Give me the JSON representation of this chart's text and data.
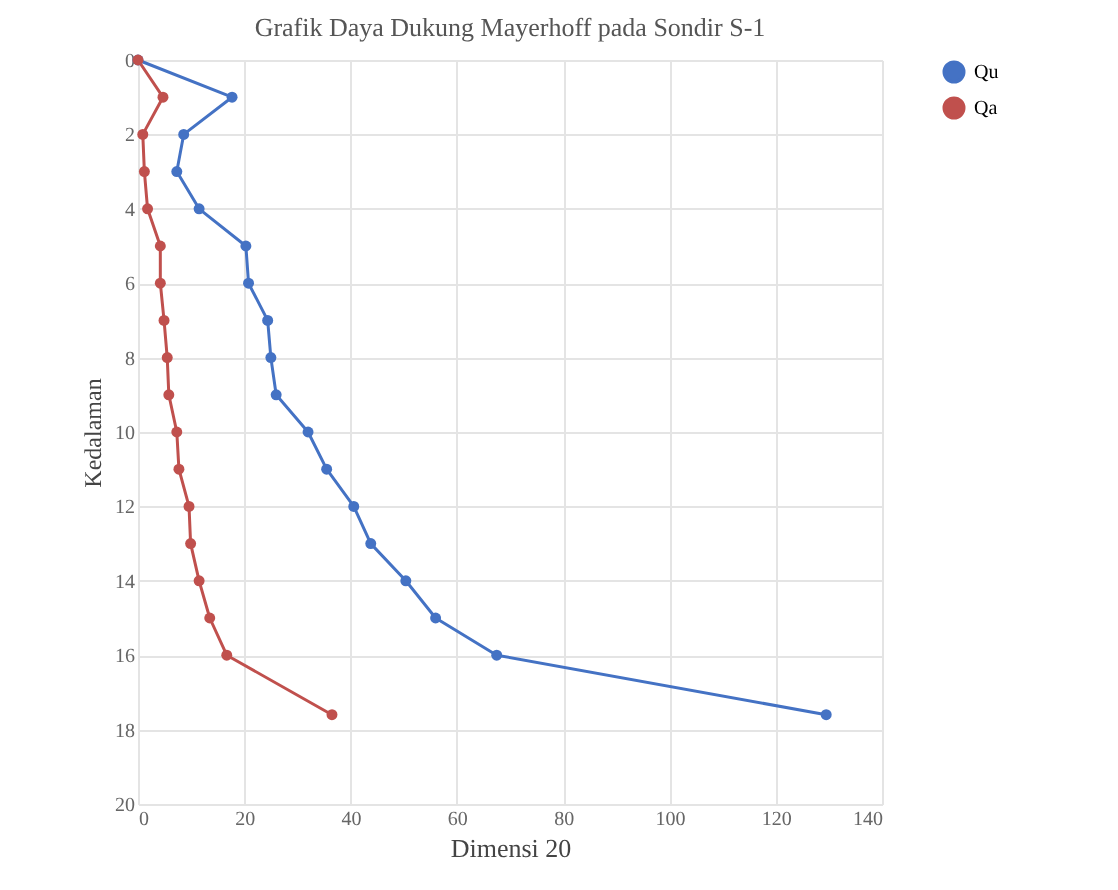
{
  "chart_data": {
    "type": "line",
    "orientation": "horizontal",
    "title": "Grafik Daya Dukung Mayerhoff pada Sondir S-1",
    "xlabel": "Dimensi 20",
    "ylabel": "Kedalaman",
    "x": [
      0,
      1,
      2,
      3,
      4,
      5,
      6,
      7,
      8,
      9,
      10,
      11,
      12,
      13,
      14,
      15,
      16,
      17.6
    ],
    "series": [
      {
        "name": "Qu",
        "color": "#4472c4",
        "values": [
          0,
          17.7,
          8.6,
          7.3,
          11.5,
          20.3,
          20.8,
          24.4,
          25,
          26,
          32,
          35.5,
          40.6,
          43.8,
          50.4,
          56,
          67.5,
          129.5
        ]
      },
      {
        "name": "Qa",
        "color": "#c0504d",
        "values": [
          0,
          4.7,
          0.9,
          1.2,
          1.8,
          4.2,
          4.2,
          4.9,
          5.5,
          5.8,
          7.3,
          7.7,
          9.6,
          9.9,
          11.5,
          13.5,
          16.7,
          36.5
        ]
      }
    ],
    "xlim": [
      0,
      140
    ],
    "xticks": [
      0,
      20,
      40,
      60,
      80,
      100,
      120,
      140
    ],
    "ylim": [
      20,
      0
    ],
    "yticks": [
      0,
      2,
      4,
      6,
      8,
      10,
      12,
      14,
      16,
      18,
      20
    ],
    "grid": true,
    "legend": "right",
    "marker": "circle",
    "line_style": "solid"
  }
}
